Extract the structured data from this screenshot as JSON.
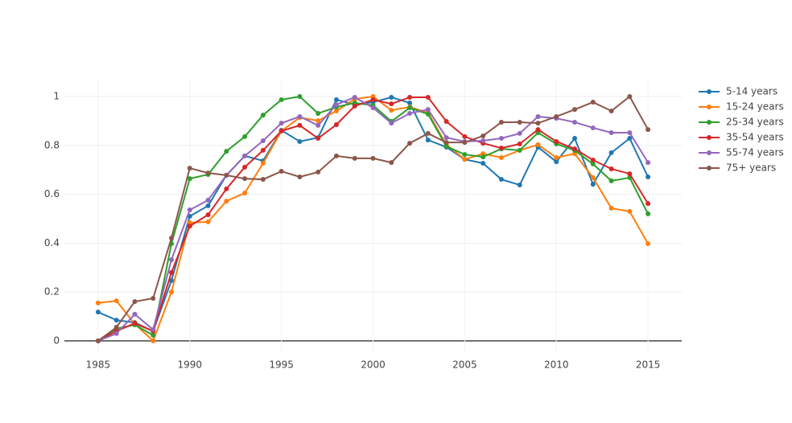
{
  "chart_data": {
    "type": "line",
    "x": [
      1985,
      1986,
      1987,
      1988,
      1989,
      1990,
      1991,
      1992,
      1993,
      1994,
      1995,
      1996,
      1997,
      1998,
      1999,
      2000,
      2001,
      2002,
      2003,
      2004,
      2005,
      2006,
      2007,
      2008,
      2009,
      2010,
      2011,
      2012,
      2013,
      2014,
      2015
    ],
    "xlim": [
      1983.16,
      2016.84
    ],
    "xticks": [
      1985,
      1990,
      1995,
      2000,
      2005,
      2010,
      2015
    ],
    "ylim": [
      -0.053,
      1.066
    ],
    "yticks": [
      0,
      0.2,
      0.4,
      0.6,
      0.8,
      1
    ],
    "grid": true,
    "legend": "right",
    "series": [
      {
        "name": "5-14 years",
        "color": "#1f77b4",
        "values": [
          0.118,
          0.085,
          0.075,
          0.04,
          0.247,
          0.51,
          0.553,
          0.678,
          0.757,
          0.737,
          0.862,
          0.816,
          0.832,
          0.987,
          0.967,
          0.977,
          0.997,
          0.974,
          0.822,
          0.793,
          0.743,
          0.727,
          0.661,
          0.638,
          0.793,
          0.733,
          0.829,
          0.641,
          0.77,
          0.829,
          0.671
        ]
      },
      {
        "name": "15-24 years",
        "color": "#ff7f0e",
        "values": [
          0.155,
          0.164,
          0.069,
          0,
          0.2,
          0.484,
          0.487,
          0.572,
          0.605,
          0.727,
          0.859,
          0.914,
          0.901,
          0.941,
          0.99,
          1.0,
          0.944,
          0.957,
          0.934,
          0.803,
          0.743,
          0.766,
          0.75,
          0.78,
          0.803,
          0.75,
          0.766,
          0.668,
          0.543,
          0.53,
          0.398
        ]
      },
      {
        "name": "25-34 years",
        "color": "#2ca02c",
        "values": [
          0,
          0.05,
          0.066,
          0.023,
          0.398,
          0.664,
          0.681,
          0.776,
          0.836,
          0.924,
          0.987,
          1.0,
          0.931,
          0.957,
          0.974,
          0.964,
          0.898,
          0.954,
          0.928,
          0.796,
          0.763,
          0.753,
          0.786,
          0.78,
          0.852,
          0.806,
          0.78,
          0.724,
          0.655,
          0.668,
          0.52
        ]
      },
      {
        "name": "35-54 years",
        "color": "#d62728",
        "values": [
          0,
          0.04,
          0.072,
          0.04,
          0.28,
          0.47,
          0.516,
          0.622,
          0.711,
          0.78,
          0.859,
          0.882,
          0.829,
          0.885,
          0.961,
          0.987,
          0.97,
          0.997,
          0.997,
          0.898,
          0.836,
          0.809,
          0.789,
          0.806,
          0.865,
          0.816,
          0.786,
          0.74,
          0.704,
          0.684,
          0.562
        ]
      },
      {
        "name": "55-74 years",
        "color": "#9467bd",
        "values": [
          0,
          0.03,
          0.109,
          0.046,
          0.332,
          0.536,
          0.576,
          0.678,
          0.757,
          0.819,
          0.891,
          0.918,
          0.882,
          0.967,
          0.997,
          0.954,
          0.891,
          0.931,
          0.947,
          0.832,
          0.816,
          0.819,
          0.829,
          0.849,
          0.918,
          0.911,
          0.895,
          0.872,
          0.852,
          0.852,
          0.73
        ]
      },
      {
        "name": "75+ years",
        "color": "#8c564b",
        "values": [
          0,
          0.056,
          0.161,
          0.174,
          0.421,
          0.707,
          0.687,
          0.678,
          0.664,
          0.661,
          0.694,
          0.671,
          0.691,
          0.757,
          0.747,
          0.747,
          0.73,
          0.809,
          0.849,
          0.812,
          0.812,
          0.839,
          0.895,
          0.895,
          0.891,
          0.918,
          0.947,
          0.977,
          0.941,
          1.0,
          0.865
        ]
      }
    ]
  }
}
